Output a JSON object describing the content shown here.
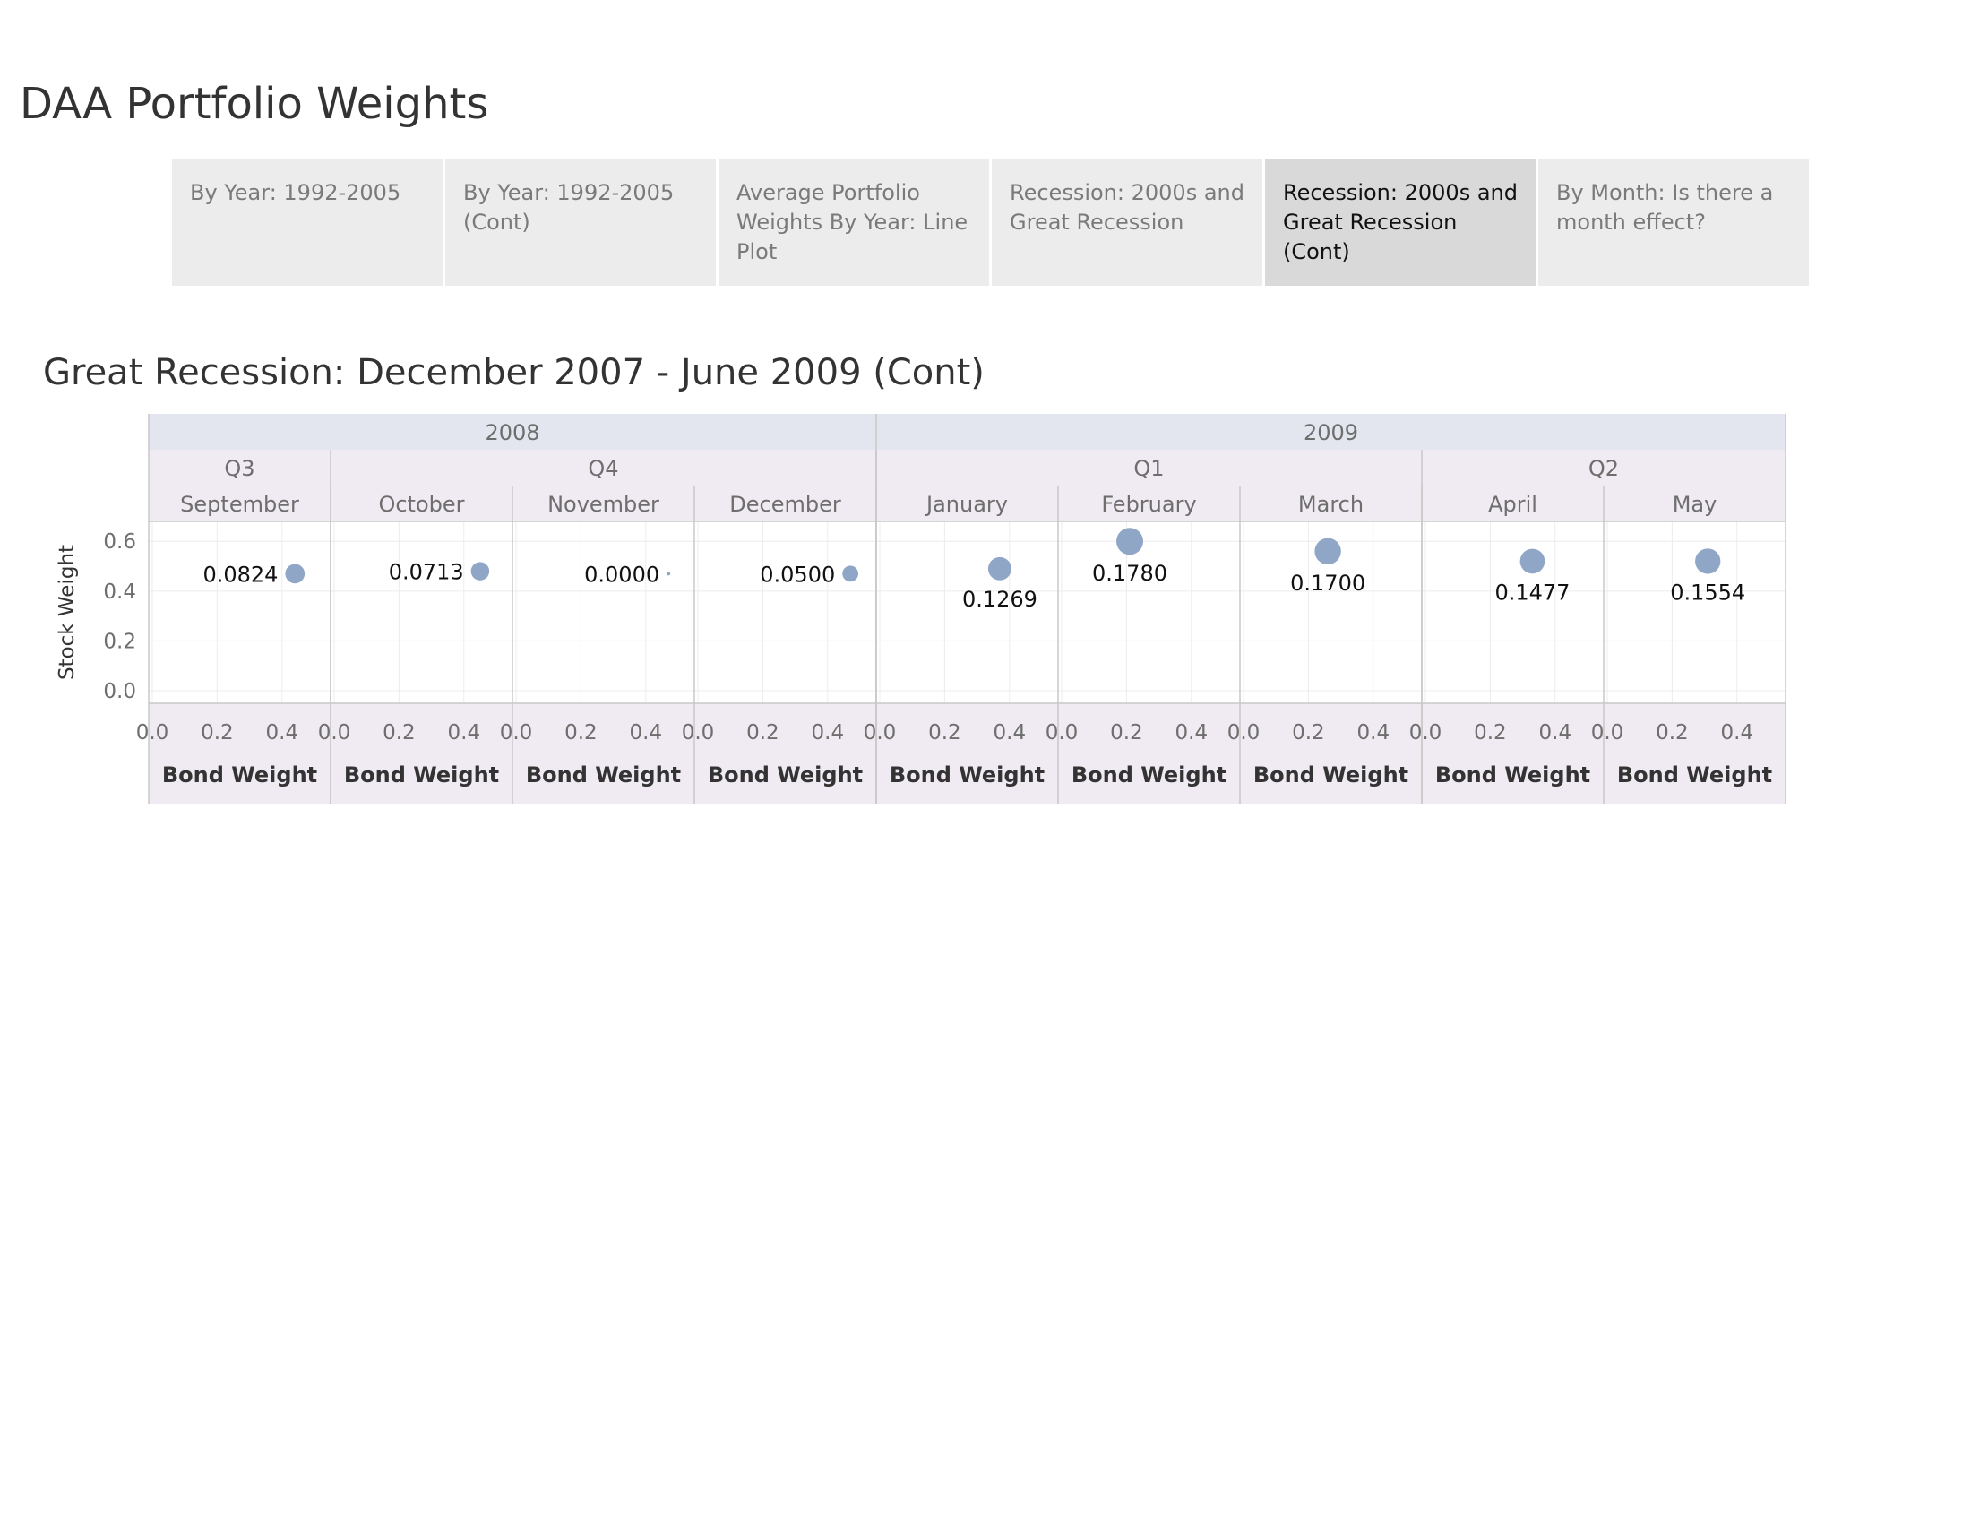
{
  "page": {
    "title": "DAA Portfolio Weights"
  },
  "tabs": [
    {
      "label": "By Year: 1992-2005",
      "active": false
    },
    {
      "label": "By Year: 1992-2005 (Cont)",
      "active": false
    },
    {
      "label": "Average Portfolio Weights By Year: Line Plot",
      "active": false
    },
    {
      "label": "Recession: 2000s and Great Recession",
      "active": false
    },
    {
      "label": "Recession: 2000s and Great Recession (Cont)",
      "active": true
    },
    {
      "label": "By Month: Is there a month effect?",
      "active": false
    }
  ],
  "chart_data": {
    "type": "scatter",
    "title": "Great Recession: December 2007 - June 2009 (Cont)",
    "xlabel": "Bond Weight",
    "ylabel": "Stock Weight",
    "xlim": [
      0,
      0.5
    ],
    "ylim": [
      0,
      0.68
    ],
    "x_ticks": [
      "0.0",
      "0.2",
      "0.4"
    ],
    "y_ticks": [
      "0.0",
      "0.2",
      "0.4",
      "0.6"
    ],
    "years": [
      {
        "label": "2008",
        "months": 4
      },
      {
        "label": "2009",
        "months": 5
      }
    ],
    "quarters": [
      {
        "label": "Q3",
        "months": 1
      },
      {
        "label": "Q4",
        "months": 3
      },
      {
        "label": "Q1",
        "months": 3
      },
      {
        "label": "Q2",
        "months": 2
      }
    ],
    "panels": [
      {
        "month": "September",
        "bond": 0.44,
        "stock": 0.47,
        "size_value": 0.0824,
        "label": "0.0824",
        "label_pos": "left"
      },
      {
        "month": "October",
        "bond": 0.45,
        "stock": 0.48,
        "size_value": 0.0713,
        "label": "0.0713",
        "label_pos": "left"
      },
      {
        "month": "November",
        "bond": 0.47,
        "stock": 0.47,
        "size_value": 0.0,
        "label": "0.0000",
        "label_pos": "left"
      },
      {
        "month": "December",
        "bond": 0.47,
        "stock": 0.47,
        "size_value": 0.05,
        "label": "0.0500",
        "label_pos": "left"
      },
      {
        "month": "January",
        "bond": 0.37,
        "stock": 0.49,
        "size_value": 0.1269,
        "label": "0.1269",
        "label_pos": "below"
      },
      {
        "month": "February",
        "bond": 0.21,
        "stock": 0.6,
        "size_value": 0.178,
        "label": "0.1780",
        "label_pos": "below"
      },
      {
        "month": "March",
        "bond": 0.26,
        "stock": 0.56,
        "size_value": 0.17,
        "label": "0.1700",
        "label_pos": "below"
      },
      {
        "month": "April",
        "bond": 0.33,
        "stock": 0.52,
        "size_value": 0.1477,
        "label": "0.1477",
        "label_pos": "below"
      },
      {
        "month": "May",
        "bond": 0.31,
        "stock": 0.52,
        "size_value": 0.1554,
        "label": "0.1554",
        "label_pos": "below"
      }
    ],
    "colors": {
      "marker": "#8fa6c6",
      "year_header_bg": "#e3e6ef",
      "sub_header_bg": "#f0ebf2",
      "grid": "#ececec",
      "divider": "#c8c8c8",
      "header_text": "#6e6e6e",
      "tick_text": "#6e6e6e",
      "label_text": "#111111"
    }
  }
}
